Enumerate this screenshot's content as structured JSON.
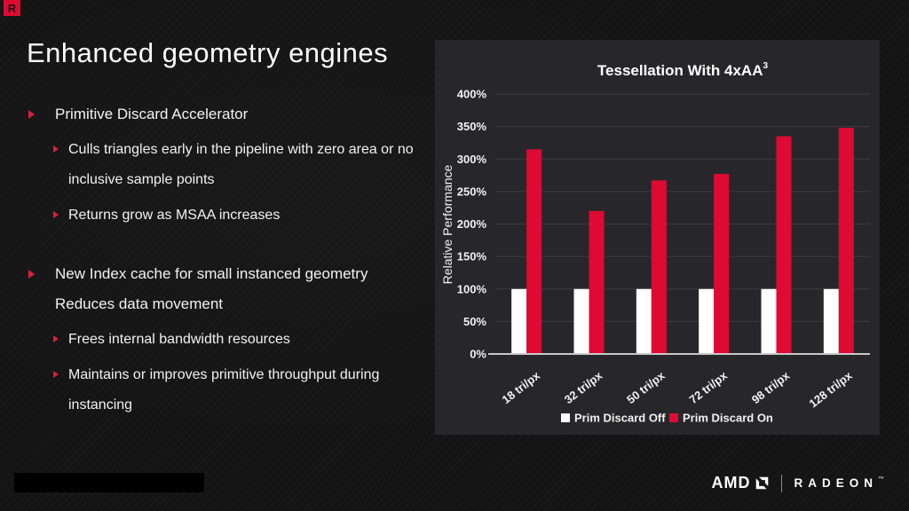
{
  "slide": {
    "corner_logo_letter": "R",
    "title": "Enhanced geometry engines",
    "bullets": [
      {
        "level": 1,
        "text": "Primitive Discard Accelerator"
      },
      {
        "level": 2,
        "text": "Culls triangles early in the pipeline with zero area or no inclusive sample points"
      },
      {
        "level": 2,
        "text": "Returns grow as MSAA increases"
      },
      {
        "level": 1,
        "lines": [
          "New Index cache for small instanced geometry",
          "Reduces data movement"
        ]
      },
      {
        "level": 2,
        "text": "Frees internal bandwidth resources"
      },
      {
        "level": 2,
        "text": "Maintains or  improves primitive throughput during instancing"
      }
    ]
  },
  "footer": {
    "amd_label": "AMD",
    "radeon_label": "RADEON",
    "radeon_tm": "™"
  },
  "chart_data": {
    "type": "bar",
    "title": "Tessellation With 4xAA",
    "title_superscript": "3",
    "ylabel": "Relative Performance",
    "xlabel": "",
    "categories": [
      "18 tri/px",
      "32 tri/px",
      "50 tri/px",
      "72 tri/px",
      "98 tri/px",
      "128 tri/px"
    ],
    "series": [
      {
        "name": "Prim Discard Off",
        "color": "#ffffff",
        "values": [
          100,
          100,
          100,
          100,
          100,
          100
        ]
      },
      {
        "name": "Prim Discard On",
        "color": "#df0a33",
        "values": [
          315,
          220,
          267,
          277,
          335,
          348
        ]
      }
    ],
    "ylim": [
      0,
      400
    ],
    "ytick_step": 50,
    "ytick_format": "percent",
    "grid": true,
    "legend_position": "bottom",
    "panel_background": "#27272b",
    "gridline_color": "#3c3c40",
    "axis_color": "#c8c8c8",
    "text_color": "#f2f2f2"
  }
}
